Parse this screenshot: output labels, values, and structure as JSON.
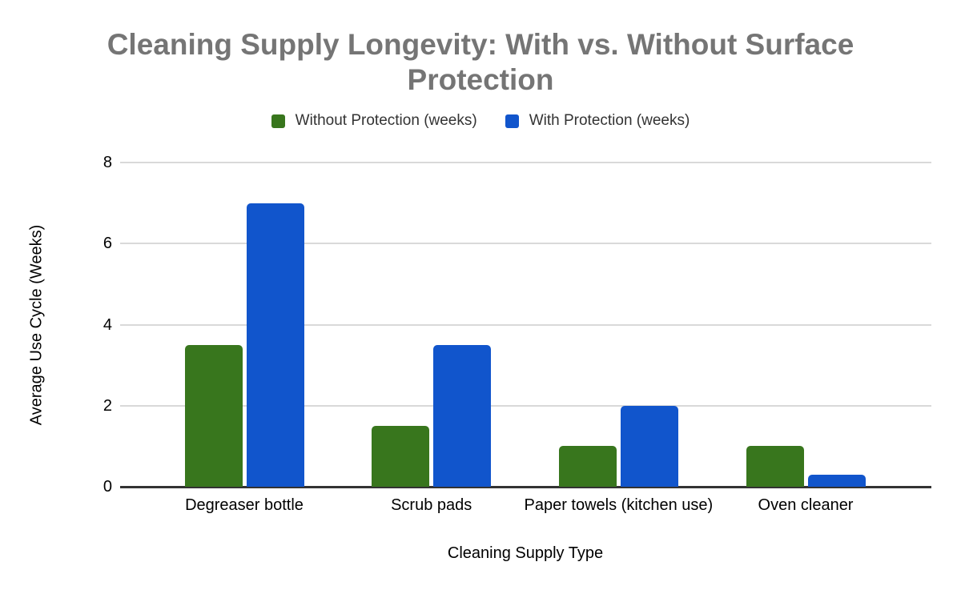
{
  "chart_data": {
    "type": "bar",
    "title": "Cleaning Supply Longevity: With vs. Without Surface Protection",
    "xlabel": "Cleaning Supply Type",
    "ylabel": "Average Use Cycle (Weeks)",
    "categories": [
      "Degreaser bottle",
      "Scrub pads",
      "Paper towels (kitchen use)",
      "Oven cleaner"
    ],
    "series": [
      {
        "name": "Without Protection (weeks)",
        "color": "#38761d",
        "values": [
          3.5,
          1.5,
          1,
          1
        ]
      },
      {
        "name": "With Protection (weeks)",
        "color": "#1155cc",
        "values": [
          7,
          3.5,
          2,
          0.3
        ]
      }
    ],
    "ylim": [
      0,
      8
    ],
    "yticks": [
      0,
      2,
      4,
      6,
      8
    ],
    "grid": true,
    "legend_position": "top",
    "colors": {
      "title_text": "#757575",
      "axis_text": "#000000",
      "legend_text": "#333333",
      "gridline": "#d9d9d9",
      "axis_line": "#333333",
      "background": "#ffffff"
    }
  }
}
